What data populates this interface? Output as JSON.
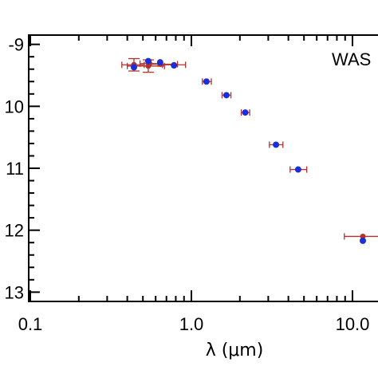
{
  "chart_data": {
    "type": "scatter",
    "title": "",
    "xlabel": "λ (μm)",
    "ylabel": "",
    "x_scale": "log",
    "xlim": [
      0.1,
      15
    ],
    "ylim": [
      -13.15,
      -8.85
    ],
    "x_ticks": [
      {
        "value": 0.1,
        "label": "0.1"
      },
      {
        "value": 1.0,
        "label": "1.0"
      },
      {
        "value": 10.0,
        "label": "10.0"
      }
    ],
    "y_ticks": [
      {
        "value": -9,
        "label": "-9"
      },
      {
        "value": -10,
        "label": "10"
      },
      {
        "value": -11,
        "label": "11"
      },
      {
        "value": -12,
        "label": "12"
      },
      {
        "value": -13,
        "label": "13"
      }
    ],
    "annotation": "WAS",
    "grid": false,
    "colors": {
      "observed": "#b5302b",
      "model": "#1c2fd6",
      "error_bar": "#b5302b"
    },
    "observed": [
      {
        "x": 0.44,
        "y": -9.33,
        "xerr": [
          0.37,
          0.51
        ],
        "yerr": 0.1
      },
      {
        "x": 0.54,
        "y": -9.35,
        "xerr": [
          0.4,
          0.68
        ],
        "yerr": 0.1
      },
      {
        "x": 0.55,
        "y": -9.31,
        "xerr": [
          0.48,
          0.62
        ],
        "yerr": 0.0
      },
      {
        "x": 0.64,
        "y": -9.32,
        "xerr": [
          0.55,
          0.82
        ],
        "yerr": 0.0
      },
      {
        "x": 0.78,
        "y": -9.33,
        "xerr": [
          0.66,
          0.92
        ],
        "yerr": 0.0
      },
      {
        "x": 1.24,
        "y": -9.6,
        "xerr": [
          1.17,
          1.33
        ],
        "yerr": 0.0
      },
      {
        "x": 1.65,
        "y": -9.82,
        "xerr": [
          1.55,
          1.76
        ],
        "yerr": 0.0
      },
      {
        "x": 2.16,
        "y": -10.1,
        "xerr": [
          2.04,
          2.3
        ],
        "yerr": 0.0
      },
      {
        "x": 3.35,
        "y": -10.62,
        "xerr": [
          3.05,
          3.7
        ],
        "yerr": 0.0
      },
      {
        "x": 4.6,
        "y": -11.02,
        "xerr": [
          4.1,
          5.2
        ],
        "yerr": 0.0
      },
      {
        "x": 11.6,
        "y": -12.1,
        "xerr": [
          8.9,
          14.8
        ],
        "yerr": 0.0
      }
    ],
    "model": [
      {
        "x": 0.44,
        "y": -9.37
      },
      {
        "x": 0.54,
        "y": -9.27
      },
      {
        "x": 0.64,
        "y": -9.29
      },
      {
        "x": 0.78,
        "y": -9.34
      },
      {
        "x": 1.24,
        "y": -9.6
      },
      {
        "x": 1.65,
        "y": -9.82
      },
      {
        "x": 2.16,
        "y": -10.1
      },
      {
        "x": 3.35,
        "y": -10.62
      },
      {
        "x": 4.6,
        "y": -11.02
      },
      {
        "x": 11.6,
        "y": -12.17
      }
    ]
  }
}
